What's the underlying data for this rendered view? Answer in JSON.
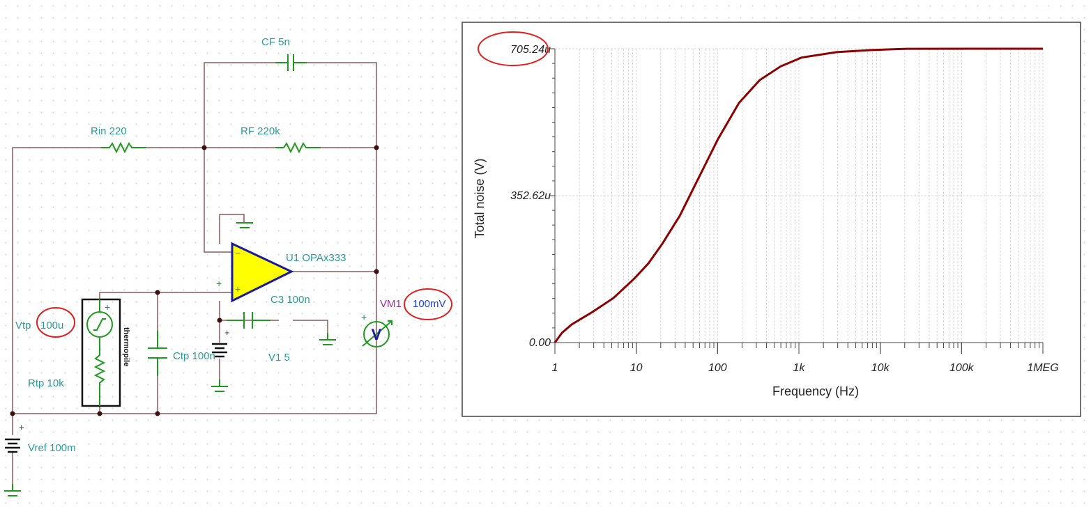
{
  "schematic": {
    "components": {
      "cf": "CF 5n",
      "rin": "Rin 220",
      "rf": "RF 220k",
      "u1": "U1 OPAx333",
      "c3": "C3 100n",
      "ctp": "Ctp 100n",
      "v1": "V1 5",
      "vtp_name": "Vtp",
      "vtp_value": "100u",
      "rtp": "Rtp 10k",
      "vref": "Vref 100m",
      "thermopile": "thermopile",
      "vm1_name": "VM1",
      "vm1_value": "100mV",
      "voltmeter_symbol": "V"
    },
    "colors": {
      "label": "#2a9a9a",
      "wire": "#8a5a5a",
      "component": "#1f9a1f",
      "opamp_fill": "#ffff00",
      "opamp_stroke": "#1a1aa0",
      "highlight": "#e02020",
      "vm_name": "#a030a0",
      "vm_value": "#2040e0"
    }
  },
  "chart_data": {
    "type": "line",
    "xlabel": "Frequency (Hz)",
    "ylabel": "Total noise (V)",
    "x_scale": "log",
    "xlim": [
      1,
      1000000
    ],
    "ylim": [
      0,
      0.00070524
    ],
    "x_tick_labels": [
      "1",
      "10",
      "100",
      "1k",
      "10k",
      "100k",
      "1MEG"
    ],
    "x_ticks": [
      1,
      10,
      100,
      1000,
      10000,
      100000,
      1000000
    ],
    "y_tick_labels": [
      "0.00",
      "352.62u",
      "705.24u"
    ],
    "y_ticks": [
      0,
      0.00035262,
      0.00070524
    ],
    "grid": true,
    "series": [
      {
        "color": "#8b0000",
        "x": [
          1,
          1.22,
          1.61,
          2.9,
          5.25,
          9.5,
          14.1,
          20.9,
          34.2,
          56,
          101,
          183,
          330,
          597,
          1075,
          2900,
          7770,
          21000,
          1000000
        ],
        "y": [
          0,
          2.34e-05,
          4.34e-05,
          7.35e-05,
          0.000107,
          0.000154,
          0.00019,
          0.000237,
          0.000304,
          0.000388,
          0.000488,
          0.000575,
          0.00063,
          0.000663,
          0.000684,
          0.000697,
          0.000702,
          0.000705,
          0.00070524
        ]
      }
    ]
  }
}
